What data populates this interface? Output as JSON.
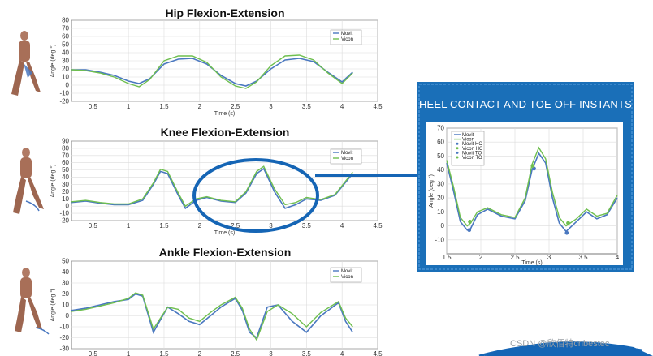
{
  "colors": {
    "movit": "#4a78c0",
    "vicon": "#6fbf4f",
    "panel": "#1a6fb8",
    "accent": "#1565b5",
    "grid": "#dcdcdc"
  },
  "figures": {
    "human_icon": "walking-human-model"
  },
  "watermark": "CSDN @欣佰特cnbestec",
  "panel": {
    "title": "HEEL CONTACT AND TOE OFF INSTANTS"
  },
  "chart_data": [
    {
      "id": "hip",
      "type": "line",
      "title": "Hip Flexion-Extension",
      "xlabel": "Time (s)",
      "ylabel": "Angle (deg °)",
      "xlim": [
        0.2,
        4.5
      ],
      "ylim": [
        -20,
        80
      ],
      "xticks": [
        0.5,
        1,
        1.5,
        2,
        2.5,
        3,
        3.5,
        4,
        4.5
      ],
      "yticks": [
        -20,
        -10,
        0,
        10,
        20,
        30,
        40,
        50,
        60,
        70,
        80
      ],
      "grid": true,
      "legend": "top-right",
      "series": [
        {
          "name": "Movit",
          "x": [
            0.2,
            0.4,
            0.6,
            0.8,
            1.0,
            1.15,
            1.3,
            1.5,
            1.7,
            1.9,
            2.1,
            2.3,
            2.5,
            2.65,
            2.8,
            3.0,
            3.2,
            3.4,
            3.6,
            3.8,
            4.0,
            4.15
          ],
          "y": [
            19,
            19,
            16,
            12,
            5,
            2,
            8,
            26,
            32,
            33,
            26,
            12,
            2,
            -1,
            5,
            20,
            31,
            33,
            29,
            16,
            4,
            16
          ]
        },
        {
          "name": "Vicon",
          "x": [
            0.2,
            0.4,
            0.6,
            0.8,
            1.0,
            1.15,
            1.3,
            1.5,
            1.7,
            1.9,
            2.1,
            2.3,
            2.5,
            2.65,
            2.8,
            3.0,
            3.2,
            3.4,
            3.6,
            3.8,
            4.0,
            4.15
          ],
          "y": [
            19,
            18,
            15,
            10,
            2,
            -2,
            7,
            30,
            36,
            36,
            28,
            10,
            -1,
            -4,
            4,
            24,
            36,
            37,
            31,
            15,
            2,
            15
          ]
        }
      ]
    },
    {
      "id": "knee",
      "type": "line",
      "title": "Knee Flexion-Extension",
      "xlabel": "Time (s)",
      "ylabel": "Angle (deg °)",
      "xlim": [
        0.2,
        4.5
      ],
      "ylim": [
        -20,
        90
      ],
      "xticks": [
        0.5,
        1,
        1.5,
        2,
        2.5,
        3,
        3.5,
        4,
        4.5
      ],
      "yticks": [
        -20,
        -10,
        0,
        10,
        20,
        30,
        40,
        50,
        60,
        70,
        80,
        90
      ],
      "grid": true,
      "legend": "top-right",
      "series": [
        {
          "name": "Movit",
          "x": [
            0.2,
            0.4,
            0.6,
            0.8,
            1.0,
            1.2,
            1.35,
            1.45,
            1.55,
            1.7,
            1.8,
            1.95,
            2.1,
            2.3,
            2.5,
            2.65,
            2.8,
            2.9,
            3.05,
            3.2,
            3.35,
            3.5,
            3.7,
            3.9,
            4.15
          ],
          "y": [
            5,
            7,
            4,
            2,
            2,
            8,
            30,
            48,
            45,
            15,
            -3,
            8,
            12,
            7,
            5,
            18,
            45,
            52,
            20,
            -3,
            2,
            10,
            8,
            15,
            45
          ]
        },
        {
          "name": "Vicon",
          "x": [
            0.2,
            0.4,
            0.6,
            0.8,
            1.0,
            1.2,
            1.35,
            1.45,
            1.55,
            1.7,
            1.8,
            1.95,
            2.1,
            2.3,
            2.5,
            2.65,
            2.8,
            2.9,
            3.05,
            3.2,
            3.35,
            3.5,
            3.7,
            3.9,
            4.15
          ],
          "y": [
            6,
            8,
            5,
            3,
            3,
            10,
            32,
            51,
            48,
            18,
            0,
            10,
            13,
            8,
            6,
            20,
            48,
            55,
            24,
            2,
            5,
            12,
            9,
            16,
            47
          ]
        }
      ]
    },
    {
      "id": "ankle",
      "type": "line",
      "title": "Ankle Flexion-Extension",
      "xlabel": "Time (s)",
      "ylabel": "Angle (deg °)",
      "xlim": [
        0.2,
        4.5
      ],
      "ylim": [
        -30,
        50
      ],
      "xticks": [
        0.5,
        1,
        1.5,
        2,
        2.5,
        3,
        3.5,
        4,
        4.5
      ],
      "yticks": [
        -30,
        -20,
        -10,
        0,
        10,
        20,
        30,
        40,
        50
      ],
      "grid": true,
      "legend": "top-right",
      "series": [
        {
          "name": "Movit",
          "x": [
            0.2,
            0.4,
            0.6,
            0.8,
            1.0,
            1.1,
            1.2,
            1.35,
            1.55,
            1.7,
            1.85,
            2.0,
            2.15,
            2.3,
            2.5,
            2.6,
            2.7,
            2.8,
            2.95,
            3.1,
            3.3,
            3.5,
            3.7,
            3.95,
            4.05,
            4.15
          ],
          "y": [
            5,
            7,
            10,
            13,
            15,
            20,
            18,
            -15,
            8,
            2,
            -5,
            -8,
            0,
            8,
            16,
            5,
            -15,
            -20,
            8,
            10,
            -5,
            -15,
            0,
            12,
            -5,
            -15
          ]
        },
        {
          "name": "Vicon",
          "x": [
            0.2,
            0.4,
            0.6,
            0.8,
            1.0,
            1.1,
            1.2,
            1.35,
            1.55,
            1.7,
            1.85,
            2.0,
            2.15,
            2.3,
            2.5,
            2.6,
            2.7,
            2.8,
            2.95,
            3.1,
            3.3,
            3.5,
            3.7,
            3.95,
            4.05,
            4.15
          ],
          "y": [
            4,
            6,
            9,
            12,
            16,
            21,
            19,
            -12,
            8,
            6,
            -2,
            -5,
            3,
            10,
            17,
            7,
            -12,
            -22,
            4,
            10,
            2,
            -10,
            3,
            13,
            -2,
            -10
          ]
        }
      ]
    },
    {
      "id": "zoom",
      "type": "line",
      "title": "",
      "xlabel": "Time (s)",
      "ylabel": "Angle (deg °)",
      "xlim": [
        1.5,
        4
      ],
      "ylim": [
        -20,
        70
      ],
      "xticks": [
        1.5,
        2,
        2.5,
        3,
        3.5,
        4
      ],
      "yticks": [
        -10,
        0,
        10,
        20,
        30,
        40,
        50,
        60,
        70
      ],
      "grid": true,
      "legend": "top-left",
      "series": [
        {
          "name": "Movit",
          "x": [
            1.5,
            1.6,
            1.7,
            1.8,
            1.85,
            1.95,
            2.1,
            2.3,
            2.5,
            2.65,
            2.75,
            2.85,
            2.95,
            3.05,
            3.15,
            3.25,
            3.4,
            3.55,
            3.7,
            3.85,
            4.0
          ],
          "y": [
            45,
            25,
            3,
            -3,
            -2,
            8,
            12,
            7,
            5,
            18,
            40,
            52,
            45,
            20,
            2,
            -4,
            3,
            10,
            5,
            8,
            20
          ]
        },
        {
          "name": "Vicon",
          "x": [
            1.5,
            1.6,
            1.7,
            1.8,
            1.85,
            1.95,
            2.1,
            2.3,
            2.5,
            2.65,
            2.75,
            2.85,
            2.95,
            3.05,
            3.15,
            3.25,
            3.4,
            3.55,
            3.7,
            3.85,
            4.0
          ],
          "y": [
            47,
            28,
            6,
            0,
            2,
            10,
            13,
            8,
            6,
            20,
            44,
            56,
            48,
            24,
            6,
            0,
            5,
            12,
            7,
            9,
            22
          ]
        }
      ],
      "markers": [
        {
          "name": "Movit HC",
          "color": "#4a78c0",
          "x": [
            2.78
          ],
          "y": [
            41
          ]
        },
        {
          "name": "Vicon HC",
          "color": "#6fbf4f",
          "x": [
            2.76
          ],
          "y": [
            43
          ]
        },
        {
          "name": "Movit TO",
          "color": "#4a78c0",
          "x": [
            1.83,
            3.26
          ],
          "y": [
            -3,
            -5
          ]
        },
        {
          "name": "Vicon TO",
          "color": "#6fbf4f",
          "x": [
            1.84,
            3.28
          ],
          "y": [
            3,
            2
          ]
        }
      ]
    }
  ]
}
